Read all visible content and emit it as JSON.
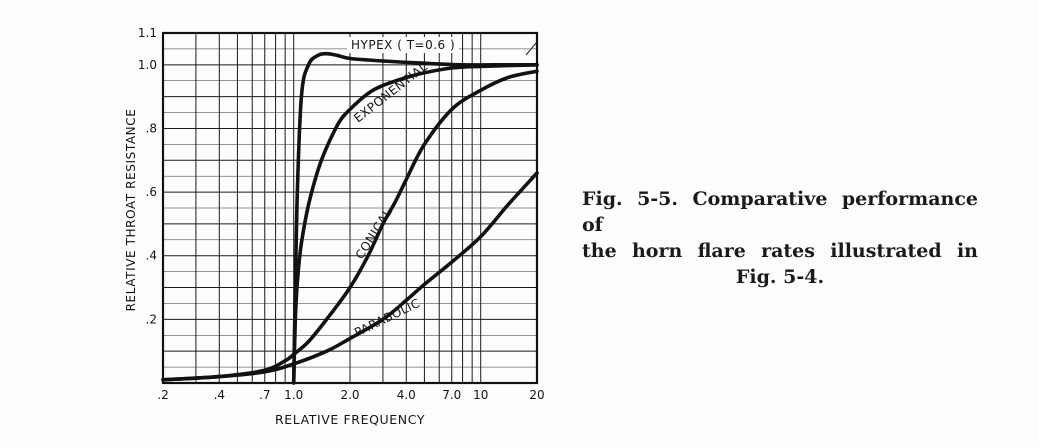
{
  "caption": {
    "line1": "Fig. 5-5. Comparative performance of",
    "line2": "the horn flare rates illustrated in",
    "line3": "Fig. 5-4."
  },
  "chart_data": {
    "type": "line",
    "title": "",
    "xlabel": "RELATIVE FREQUENCY",
    "ylabel": "RELATIVE THROAT RESISTANCE",
    "xscale": "log",
    "xlim": [
      0.2,
      20
    ],
    "ylim": [
      0,
      1.1
    ],
    "grid": true,
    "legend": "none (series labeled directly on curves)",
    "x_ticks": [
      {
        "value": 0.2,
        "label": ".2"
      },
      {
        "value": 0.4,
        "label": ".4"
      },
      {
        "value": 0.7,
        "label": ".7"
      },
      {
        "value": 1.0,
        "label": "1.0"
      },
      {
        "value": 2.0,
        "label": "2.0"
      },
      {
        "value": 4.0,
        "label": "4.0"
      },
      {
        "value": 7.0,
        "label": "7.0"
      },
      {
        "value": 10,
        "label": "10"
      },
      {
        "value": 20,
        "label": "20"
      }
    ],
    "y_ticks": [
      {
        "value": 0.2,
        "label": ".2"
      },
      {
        "value": 0.4,
        "label": ".4"
      },
      {
        "value": 0.6,
        "label": ".6"
      },
      {
        "value": 0.8,
        "label": ".8"
      },
      {
        "value": 1.0,
        "label": "1.0"
      },
      {
        "value": 1.1,
        "label": "1.1"
      }
    ],
    "series": [
      {
        "name": "HYPEX ( T=0.6 )",
        "x": [
          1.0,
          1.04,
          1.1,
          1.2,
          1.35,
          1.5,
          1.7,
          2.0,
          3.0,
          5.0,
          8.0,
          12,
          20
        ],
        "y": [
          0.0,
          0.55,
          0.9,
          1.0,
          1.03,
          1.035,
          1.03,
          1.02,
          1.012,
          1.005,
          1.0,
          1.0,
          1.0
        ]
      },
      {
        "name": "EXPONENTIAL",
        "x": [
          1.0,
          1.02,
          1.05,
          1.1,
          1.2,
          1.35,
          1.5,
          1.75,
          2.0,
          2.5,
          3.0,
          4.0,
          5.0,
          7.0,
          10,
          20
        ],
        "y": [
          0.0,
          0.2,
          0.33,
          0.44,
          0.56,
          0.67,
          0.74,
          0.82,
          0.86,
          0.91,
          0.935,
          0.96,
          0.975,
          0.99,
          0.995,
          1.0
        ]
      },
      {
        "name": "CONICAL",
        "x": [
          0.2,
          0.4,
          0.7,
          0.9,
          1.0,
          1.2,
          1.5,
          2.0,
          2.5,
          3.0,
          3.5,
          4.0,
          5.0,
          7.0,
          10,
          14,
          20
        ],
        "y": [
          0.01,
          0.02,
          0.04,
          0.07,
          0.09,
          0.13,
          0.2,
          0.3,
          0.4,
          0.5,
          0.57,
          0.64,
          0.75,
          0.86,
          0.92,
          0.96,
          0.98
        ]
      },
      {
        "name": "PARABOLIC",
        "x": [
          0.2,
          0.4,
          0.7,
          1.0,
          1.5,
          2.0,
          3.0,
          4.0,
          5.0,
          7.0,
          10,
          14,
          20
        ],
        "y": [
          0.01,
          0.02,
          0.035,
          0.06,
          0.1,
          0.14,
          0.2,
          0.26,
          0.31,
          0.38,
          0.46,
          0.56,
          0.66
        ]
      }
    ]
  }
}
